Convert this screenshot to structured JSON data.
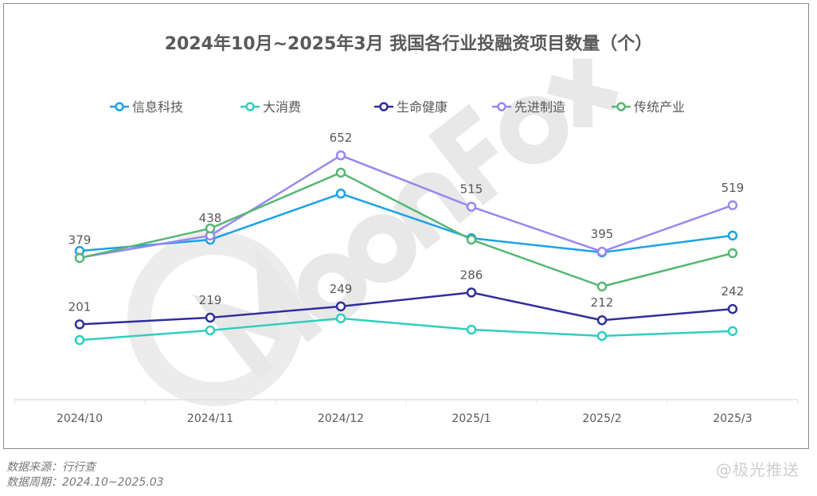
{
  "chart_data": {
    "type": "line",
    "title": "2024年10月~2025年3月 我国各行业投融资项目数量（个）",
    "categories": [
      "2024/10",
      "2024/11",
      "2024/12",
      "2025/1",
      "2025/2",
      "2025/3"
    ],
    "ylim": [
      0,
      700
    ],
    "grid": false,
    "legend_position": "top",
    "series": [
      {
        "name": "信息科技",
        "color": "#1ba2e6",
        "values": [
          397,
          427,
          550,
          431,
          393,
          438
        ],
        "labels": false
      },
      {
        "name": "大消费",
        "color": "#2ecfbd",
        "values": [
          159,
          185,
          217,
          187,
          170,
          183
        ],
        "labels": false
      },
      {
        "name": "生命健康",
        "color": "#2f2f9c",
        "values": [
          201,
          219,
          249,
          286,
          212,
          242
        ],
        "labels": true
      },
      {
        "name": "先进制造",
        "color": "#9a86f2",
        "values": [
          379,
          438,
          652,
          515,
          395,
          519
        ],
        "labels": true
      },
      {
        "name": "传统产业",
        "color": "#55b774",
        "values": [
          378,
          457,
          606,
          427,
          302,
          391
        ],
        "labels": false
      }
    ]
  },
  "watermark": "MoonFox",
  "footer": {
    "source": "数据来源：行行查",
    "period": "数据周期：2024.10~2025.03"
  },
  "credit": "@极光推送"
}
